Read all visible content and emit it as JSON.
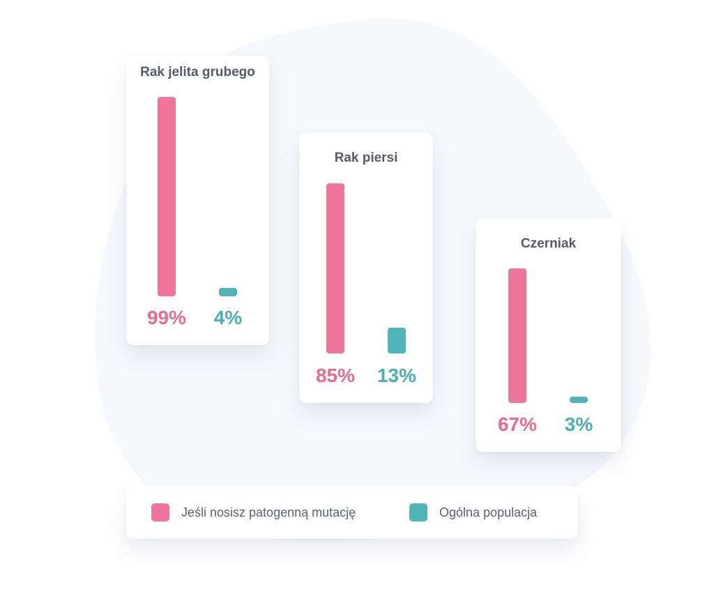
{
  "colors": {
    "primary": "#ef759c",
    "secondary": "#4fb5b8",
    "blob": "#f7f8fc"
  },
  "legend": {
    "primary_label": "Jeśli nosisz patogenną mutację",
    "secondary_label": "Ogólna populacja"
  },
  "chart_data": [
    {
      "type": "bar",
      "title": "Rak jelita grubego",
      "categories": [
        "Jeśli nosisz patogenną mutację",
        "Ogólna populacja"
      ],
      "values": [
        99,
        4
      ],
      "labels": [
        "99%",
        "4%"
      ],
      "ylim": [
        0,
        100
      ],
      "grid": false
    },
    {
      "type": "bar",
      "title": "Rak piersi",
      "categories": [
        "Jeśli nosisz patogenną mutację",
        "Ogólna populacja"
      ],
      "values": [
        85,
        13
      ],
      "labels": [
        "85%",
        "13%"
      ],
      "ylim": [
        0,
        100
      ],
      "grid": false
    },
    {
      "type": "bar",
      "title": "Czerniak",
      "categories": [
        "Jeśli nosisz patogenną mutację",
        "Ogólna populacja"
      ],
      "values": [
        67,
        3
      ],
      "labels": [
        "67%",
        "3%"
      ],
      "ylim": [
        0,
        100
      ],
      "grid": false
    }
  ]
}
